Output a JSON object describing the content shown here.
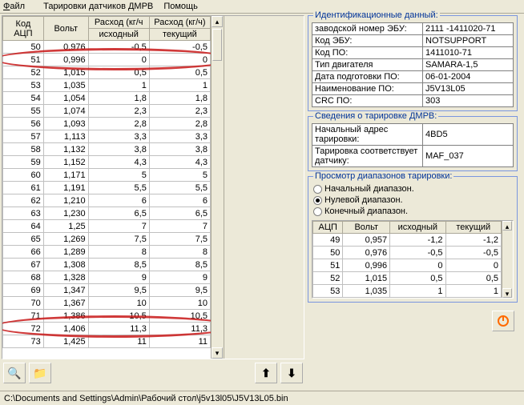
{
  "menu": {
    "file": "Файл",
    "tar": "Тарировки датчиков ДМРВ",
    "help": "Помощь"
  },
  "main_table": {
    "headers": {
      "code": "Код АЦП",
      "volt": "Вольт",
      "flow": "Расход (кг/ч",
      "flow_cur": "Расход (кг/ч)",
      "src": "исходный",
      "cur": "текущий"
    },
    "rows": [
      {
        "c": "50",
        "v": "0,976",
        "s": "-0,5",
        "t": "-0,5"
      },
      {
        "c": "51",
        "v": "0,996",
        "s": "0",
        "t": "0"
      },
      {
        "c": "52",
        "v": "1,015",
        "s": "0,5",
        "t": "0,5"
      },
      {
        "c": "53",
        "v": "1,035",
        "s": "1",
        "t": "1"
      },
      {
        "c": "54",
        "v": "1,054",
        "s": "1,8",
        "t": "1,8"
      },
      {
        "c": "55",
        "v": "1,074",
        "s": "2,3",
        "t": "2,3"
      },
      {
        "c": "56",
        "v": "1,093",
        "s": "2,8",
        "t": "2,8"
      },
      {
        "c": "57",
        "v": "1,113",
        "s": "3,3",
        "t": "3,3"
      },
      {
        "c": "58",
        "v": "1,132",
        "s": "3,8",
        "t": "3,8"
      },
      {
        "c": "59",
        "v": "1,152",
        "s": "4,3",
        "t": "4,3"
      },
      {
        "c": "60",
        "v": "1,171",
        "s": "5",
        "t": "5"
      },
      {
        "c": "61",
        "v": "1,191",
        "s": "5,5",
        "t": "5,5"
      },
      {
        "c": "62",
        "v": "1,210",
        "s": "6",
        "t": "6"
      },
      {
        "c": "63",
        "v": "1,230",
        "s": "6,5",
        "t": "6,5"
      },
      {
        "c": "64",
        "v": "1,25",
        "s": "7",
        "t": "7"
      },
      {
        "c": "65",
        "v": "1,269",
        "s": "7,5",
        "t": "7,5"
      },
      {
        "c": "66",
        "v": "1,289",
        "s": "8",
        "t": "8"
      },
      {
        "c": "67",
        "v": "1,308",
        "s": "8,5",
        "t": "8,5"
      },
      {
        "c": "68",
        "v": "1,328",
        "s": "9",
        "t": "9"
      },
      {
        "c": "69",
        "v": "1,347",
        "s": "9,5",
        "t": "9,5"
      },
      {
        "c": "70",
        "v": "1,367",
        "s": "10",
        "t": "10"
      },
      {
        "c": "71",
        "v": "1,386",
        "s": "10,5",
        "t": "10,5"
      },
      {
        "c": "72",
        "v": "1,406",
        "s": "11,3",
        "t": "11,3"
      },
      {
        "c": "73",
        "v": "1,425",
        "s": "11",
        "t": "11"
      }
    ]
  },
  "ident": {
    "title": "Идентификационные данный:",
    "rows": [
      [
        "заводской номер ЭБУ:",
        "2111 -1411020-71"
      ],
      [
        "Код ЭБУ:",
        "NOTSUPPORT"
      ],
      [
        "Код ПО:",
        "1411010-71"
      ],
      [
        "Тип двигателя",
        "SAMARA-1,5"
      ],
      [
        "Дата подготовки ПО:",
        "06-01-2004"
      ],
      [
        "Наименование ПО:",
        "J5V13L05"
      ],
      [
        "CRC ПО:",
        "303"
      ]
    ]
  },
  "tarinfo": {
    "title": "Сведения о тарировке ДМРВ:",
    "rows": [
      [
        "Начальный адрес тарировки:",
        "4BD5"
      ],
      [
        "Тарировка соответствует датчику:",
        "MAF_037"
      ]
    ]
  },
  "ranges": {
    "title": "Просмотр диапазонов тарировки:",
    "opt1": "Начальный диапазон.",
    "opt2": "Нулевой диапазон.",
    "opt3": "Конечный диапазон.",
    "selected": 1,
    "headers": {
      "acp": "АЦП",
      "volt": "Вольт",
      "src": "исходный",
      "cur": "текущий"
    },
    "rows": [
      {
        "c": "49",
        "v": "0,957",
        "s": "-1,2",
        "t": "-1,2"
      },
      {
        "c": "50",
        "v": "0,976",
        "s": "-0,5",
        "t": "-0,5"
      },
      {
        "c": "51",
        "v": "0,996",
        "s": "0",
        "t": "0"
      },
      {
        "c": "52",
        "v": "1,015",
        "s": "0,5",
        "t": "0,5"
      },
      {
        "c": "53",
        "v": "1,035",
        "s": "1",
        "t": "1"
      }
    ]
  },
  "status": "C:\\Documents and Settings\\Admin\\Рабочий стол\\j5v13l05\\J5V13L05.bin",
  "colors": {
    "bg": "#ece9d8",
    "border": "#aca899",
    "accent": "#003399",
    "ring": "#c81818",
    "close": "#ff6a00"
  },
  "col_widths": {
    "main": [
      50,
      55,
      75,
      75
    ],
    "small": [
      35,
      55,
      65,
      65
    ]
  }
}
